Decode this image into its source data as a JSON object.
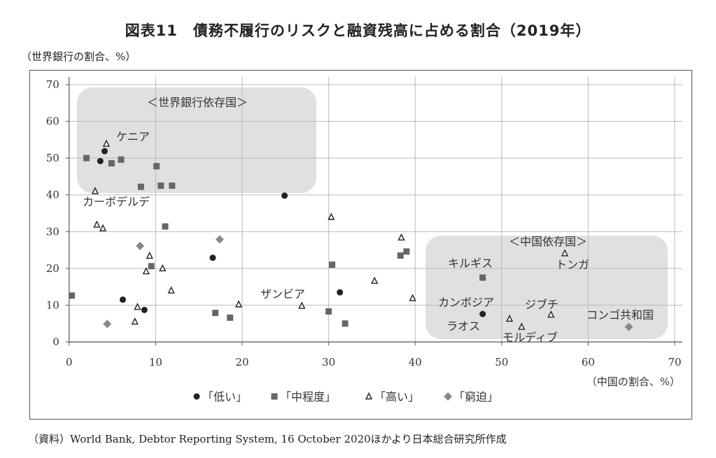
{
  "title": "図表11　債務不履行のリスクと融資残高に占める割合（2019年）",
  "footer": "（資料）World Bank, Debtor Reporting System, 16 October 2020ほかより日本総合研究所作成",
  "chart_data": {
    "type": "scatter",
    "xlabel": "（中国の割合、%）",
    "ylabel": "（世界銀行の割合、%）",
    "xlim": [
      0,
      70
    ],
    "ylim": [
      0,
      70
    ],
    "xticks": [
      "0",
      "10",
      "20",
      "30",
      "40",
      "50",
      "60",
      "70"
    ],
    "yticks": [
      "0",
      "10",
      "20",
      "30",
      "40",
      "50",
      "60",
      "70"
    ],
    "grid": true,
    "legend_position": "bottom",
    "colors": {
      "低い": "#222222",
      "中程度": "#666666",
      "高い": "#222222",
      "窮迫": "#888888",
      "region": "#e0e0e0"
    },
    "series": [
      {
        "name": "「低い」",
        "marker": "circle",
        "points": [
          [
            4.1,
            51.9
          ],
          [
            3.6,
            49.2
          ],
          [
            24.9,
            39.8
          ],
          [
            6.2,
            11.5
          ],
          [
            8.7,
            8.7
          ],
          [
            16.6,
            22.9
          ],
          [
            31.3,
            13.5
          ],
          [
            47.8,
            7.6
          ]
        ]
      },
      {
        "name": "「中程度」",
        "marker": "square",
        "points": [
          [
            2.0,
            50.0
          ],
          [
            4.9,
            48.6
          ],
          [
            6.0,
            49.6
          ],
          [
            10.1,
            47.8
          ],
          [
            8.3,
            42.2
          ],
          [
            10.6,
            42.5
          ],
          [
            11.9,
            42.5
          ],
          [
            11.1,
            31.4
          ],
          [
            9.5,
            20.6
          ],
          [
            0.3,
            12.6
          ],
          [
            16.9,
            7.9
          ],
          [
            18.6,
            6.6
          ],
          [
            30.4,
            21.0
          ],
          [
            38.3,
            23.5
          ],
          [
            39.0,
            24.6
          ],
          [
            30.0,
            8.3
          ],
          [
            31.9,
            5.0
          ],
          [
            47.8,
            17.5
          ]
        ]
      },
      {
        "name": "「高い」",
        "marker": "triangle",
        "points": [
          [
            4.3,
            53.9
          ],
          [
            3.0,
            41.0
          ],
          [
            3.2,
            31.9
          ],
          [
            3.9,
            30.9
          ],
          [
            9.3,
            23.4
          ],
          [
            8.9,
            19.2
          ],
          [
            10.8,
            20.0
          ],
          [
            11.8,
            14.0
          ],
          [
            7.9,
            9.5
          ],
          [
            7.6,
            5.5
          ],
          [
            19.6,
            10.2
          ],
          [
            26.9,
            9.8
          ],
          [
            30.3,
            34.0
          ],
          [
            38.4,
            28.4
          ],
          [
            35.3,
            16.6
          ],
          [
            39.7,
            11.9
          ],
          [
            57.3,
            24.1
          ],
          [
            50.9,
            6.3
          ],
          [
            52.3,
            4.1
          ],
          [
            55.7,
            7.4
          ]
        ]
      },
      {
        "name": "「窮迫」",
        "marker": "diamond",
        "points": [
          [
            8.2,
            26.1
          ],
          [
            17.4,
            27.9
          ],
          [
            4.4,
            4.9
          ],
          [
            64.7,
            4.1
          ]
        ]
      }
    ],
    "annotations": {
      "world_bank_group": "＜世界銀行依存国＞",
      "china_group": "＜中国依存国＞",
      "kenya": "ケニア",
      "cabo_verde": "カーボデルデ",
      "zambia": "ザンビア",
      "kyrgyz": "キルギス",
      "tonga": "トンガ",
      "cambodia": "カンボジア",
      "djibouti": "ジブチ",
      "laos": "ラオス",
      "maldives": "モルディブ",
      "congo": "コンゴ共和国"
    }
  }
}
